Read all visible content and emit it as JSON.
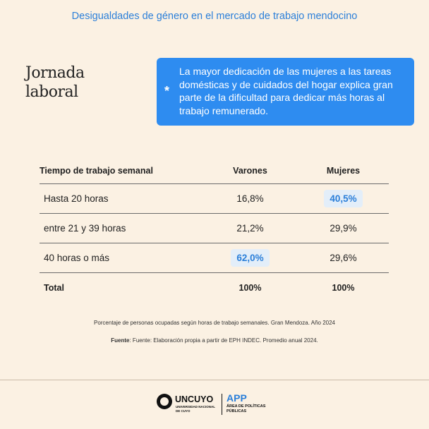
{
  "header": {
    "title": "Desigualdades de género en el mercado de trabajo mendocino"
  },
  "section": {
    "title_line1": "Jornada",
    "title_line2": "laboral"
  },
  "callout": {
    "symbol": "*",
    "text": "La mayor dedicación de las mujeres a las tareas domésticas y de cuidados del hogar explica gran parte de la dificultad para dedicar más horas al trabajo remunerado."
  },
  "table": {
    "headers": [
      "Tiempo de trabajo semanal",
      "Varones",
      "Mujeres"
    ],
    "rows": [
      {
        "label": "Hasta 20 horas",
        "varones": "16,8%",
        "mujeres": "40,5%"
      },
      {
        "label": "entre 21 y 39 horas",
        "varones": "21,2%",
        "mujeres": "29,9%"
      },
      {
        "label": "40 horas o más",
        "varones": "62,0%",
        "mujeres": "29,6%"
      }
    ],
    "total": {
      "label": "Total",
      "varones": "100%",
      "mujeres": "100%"
    },
    "highlight_color": "#2b7fd9"
  },
  "footnote": "Porcentaje de personas ocupadas según horas de trabajo semanales. Gran Mendoza. Año 2024",
  "source": {
    "label": "Fuente",
    "text": ": Fuente: Elaboración propia a partir de EPH INDEC. Promedio anual 2024."
  },
  "logos": {
    "uncuyo": {
      "name": "UNCUYO",
      "sub": "UNIVERSIDAD NACIONAL DE CUYO"
    },
    "app": {
      "name": "APP",
      "sub": "ÁREA DE POLÍTICAS PÚBLICAS"
    }
  },
  "colors": {
    "background": "#fbf1e3",
    "accent": "#2e8cf0"
  }
}
